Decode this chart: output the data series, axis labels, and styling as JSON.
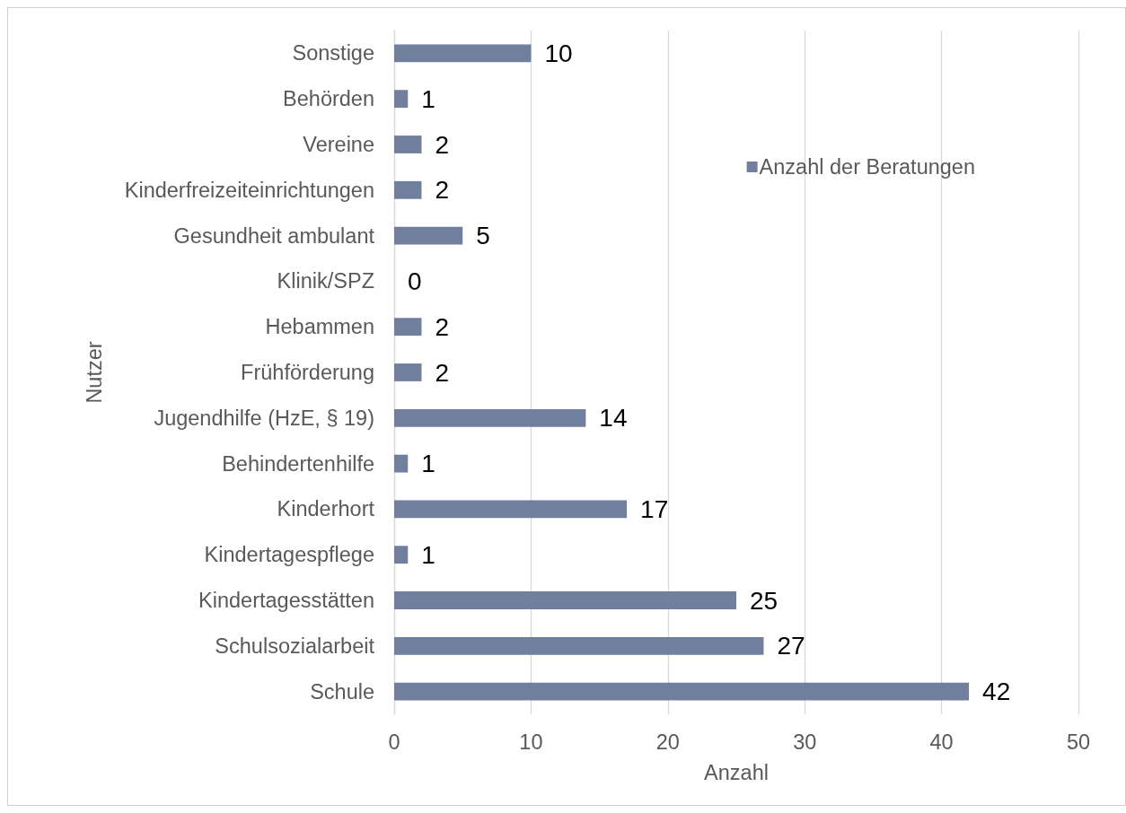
{
  "chart_data": {
    "type": "bar",
    "orientation": "horizontal",
    "xlabel": "Anzahl",
    "ylabel": "Nutzer",
    "categories": [
      "Sonstige",
      "Behörden",
      "Vereine",
      "Kinderfreizeiteinrichtungen",
      "Gesundheit ambulant",
      "Klinik/SPZ",
      "Hebammen",
      "Frühförderung",
      "Jugendhilfe (HzE, § 19)",
      "Behindertenhilfe",
      "Kinderhort",
      "Kindertagespflege",
      "Kindertagesstätten",
      "Schulsozialarbeit",
      "Schule"
    ],
    "series": [
      {
        "name": "Anzahl der Beratungen",
        "color": "#717f9f",
        "values": [
          10,
          1,
          2,
          2,
          5,
          0,
          2,
          2,
          14,
          1,
          17,
          1,
          25,
          27,
          42
        ]
      }
    ],
    "xlim": [
      0,
      50
    ],
    "xticks": [
      0,
      10,
      20,
      30,
      40,
      50
    ],
    "grid": "x",
    "legend": "top right",
    "data_labels": true
  }
}
